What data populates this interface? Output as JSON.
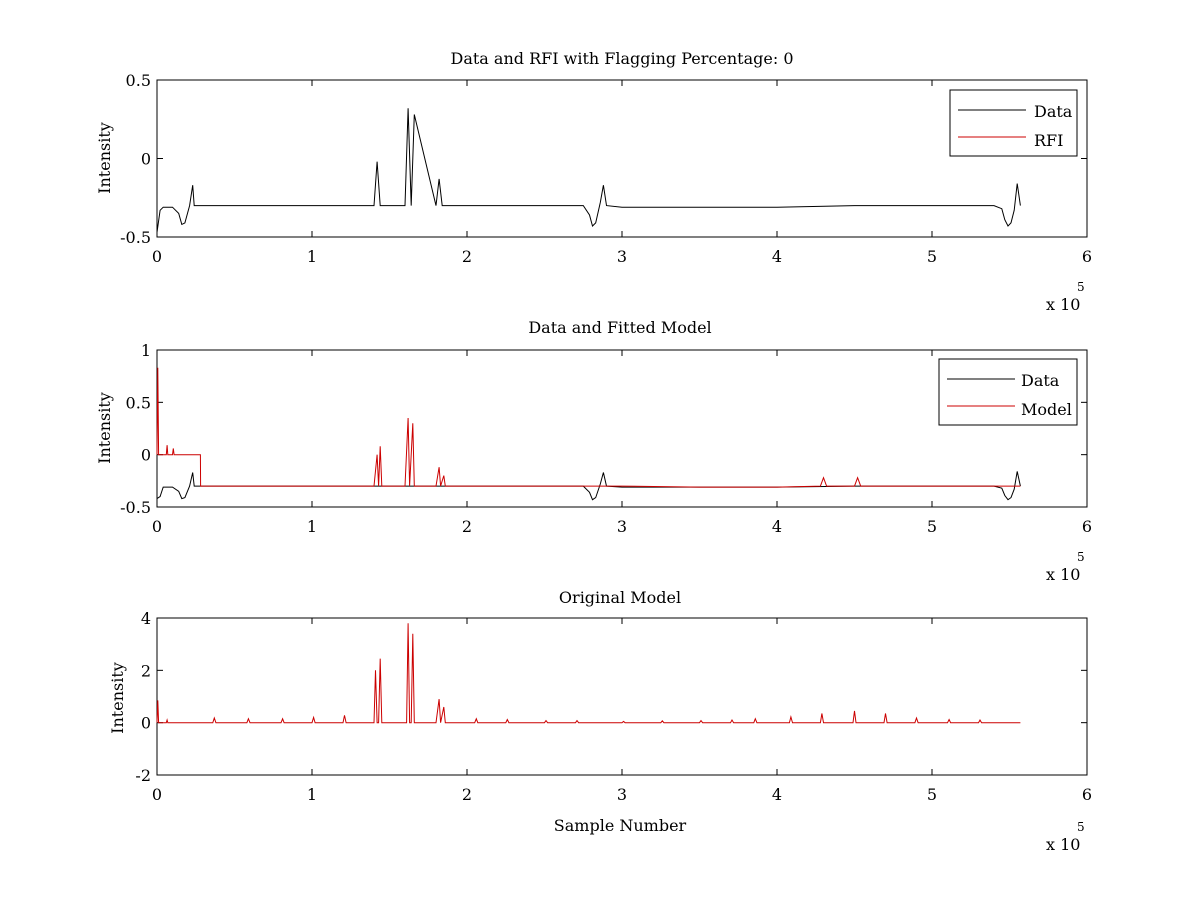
{
  "chart_data": [
    {
      "type": "line",
      "title": "Data and RFI with Flagging Percentage: 0",
      "xlabel": "",
      "ylabel": "Intensity",
      "x_exponent_label": "x 10",
      "x_exponent_power": "5",
      "xlim": [
        0,
        6
      ],
      "ylim": [
        -0.5,
        0.5
      ],
      "xticks": [
        "0",
        "1",
        "2",
        "3",
        "4",
        "5",
        "6"
      ],
      "yticks": [
        "-0.5",
        "0",
        "0.5"
      ],
      "legend": {
        "position": "top-right",
        "entries": [
          "Data",
          "RFI"
        ]
      },
      "series": [
        {
          "name": "Data",
          "color": "#000000",
          "x": [
            0,
            0.02,
            0.04,
            0.06,
            0.1,
            0.14,
            0.16,
            0.18,
            0.21,
            0.23,
            0.24,
            0.3,
            0.5,
            0.8,
            1.0,
            1.2,
            1.4,
            1.42,
            1.44,
            1.46,
            1.6,
            1.62,
            1.64,
            1.66,
            1.8,
            1.82,
            1.84,
            1.86,
            2.0,
            2.4,
            2.75,
            2.79,
            2.81,
            2.83,
            2.86,
            2.88,
            2.9,
            3.0,
            3.5,
            4.0,
            4.5,
            5.0,
            5.4,
            5.45,
            5.47,
            5.49,
            5.51,
            5.53,
            5.55,
            5.57
          ],
          "y": [
            -0.47,
            -0.33,
            -0.31,
            -0.31,
            -0.31,
            -0.35,
            -0.42,
            -0.41,
            -0.3,
            -0.17,
            -0.3,
            -0.3,
            -0.3,
            -0.3,
            -0.3,
            -0.3,
            -0.3,
            -0.02,
            -0.3,
            -0.3,
            -0.3,
            0.32,
            -0.3,
            0.28,
            -0.3,
            -0.13,
            -0.3,
            -0.3,
            -0.3,
            -0.3,
            -0.3,
            -0.36,
            -0.43,
            -0.41,
            -0.28,
            -0.17,
            -0.3,
            -0.31,
            -0.31,
            -0.31,
            -0.3,
            -0.3,
            -0.3,
            -0.32,
            -0.39,
            -0.43,
            -0.41,
            -0.33,
            -0.16,
            -0.3
          ]
        },
        {
          "name": "RFI",
          "color": "#cc0000",
          "x": [],
          "y": []
        }
      ]
    },
    {
      "type": "line",
      "title": "Data and Fitted Model",
      "xlabel": "",
      "ylabel": "Intensity",
      "x_exponent_label": "x 10",
      "x_exponent_power": "5",
      "xlim": [
        0,
        6
      ],
      "ylim": [
        -0.5,
        1
      ],
      "xticks": [
        "0",
        "1",
        "2",
        "3",
        "4",
        "5",
        "6"
      ],
      "yticks": [
        "-0.5",
        "0",
        "0.5",
        "1"
      ],
      "legend": {
        "position": "top-right",
        "entries": [
          "Data",
          "Model"
        ]
      },
      "series": [
        {
          "name": "Data",
          "color": "#000000",
          "x": [
            0,
            0.02,
            0.04,
            0.06,
            0.1,
            0.14,
            0.16,
            0.18,
            0.21,
            0.23,
            0.24,
            0.3,
            0.5,
            1.0,
            1.5,
            2.0,
            2.5,
            2.75,
            2.79,
            2.81,
            2.83,
            2.86,
            2.88,
            2.9,
            3.0,
            3.5,
            4.0,
            4.5,
            5.0,
            5.4,
            5.45,
            5.47,
            5.49,
            5.51,
            5.53,
            5.55,
            5.57
          ],
          "y": [
            -0.42,
            -0.4,
            -0.31,
            -0.31,
            -0.31,
            -0.35,
            -0.42,
            -0.41,
            -0.3,
            -0.17,
            -0.3,
            -0.3,
            -0.3,
            -0.3,
            -0.3,
            -0.3,
            -0.3,
            -0.3,
            -0.36,
            -0.43,
            -0.41,
            -0.28,
            -0.17,
            -0.3,
            -0.31,
            -0.31,
            -0.31,
            -0.3,
            -0.3,
            -0.3,
            -0.32,
            -0.39,
            -0.43,
            -0.41,
            -0.33,
            -0.16,
            -0.3
          ]
        },
        {
          "name": "Model",
          "color": "#cc0000",
          "x": [
            0,
            0.005,
            0.01,
            0.015,
            0.02,
            0.06,
            0.065,
            0.07,
            0.1,
            0.105,
            0.11,
            0.28,
            0.281,
            0.5,
            1.0,
            1.4,
            1.42,
            1.43,
            1.44,
            1.45,
            1.46,
            1.6,
            1.62,
            1.63,
            1.65,
            1.66,
            1.67,
            1.8,
            1.82,
            1.83,
            1.85,
            1.86,
            2.0,
            2.5,
            3.0,
            3.5,
            4.0,
            4.28,
            4.3,
            4.32,
            4.5,
            4.52,
            4.54,
            5.0,
            5.4,
            5.57
          ],
          "y": [
            0.0,
            0.83,
            0.0,
            0.0,
            0.0,
            0.0,
            0.09,
            0.0,
            0.0,
            0.06,
            0.0,
            0.0,
            -0.3,
            -0.3,
            -0.3,
            -0.3,
            0.0,
            -0.3,
            0.08,
            -0.3,
            -0.3,
            -0.3,
            0.35,
            -0.3,
            0.3,
            -0.3,
            -0.3,
            -0.3,
            -0.12,
            -0.3,
            -0.2,
            -0.3,
            -0.3,
            -0.3,
            -0.3,
            -0.31,
            -0.31,
            -0.3,
            -0.22,
            -0.3,
            -0.3,
            -0.22,
            -0.3,
            -0.3,
            -0.3,
            -0.3
          ]
        }
      ]
    },
    {
      "type": "line",
      "title": "Original Model",
      "xlabel": "Sample Number",
      "ylabel": "Intensity",
      "x_exponent_label": "x 10",
      "x_exponent_power": "5",
      "xlim": [
        0,
        6
      ],
      "ylim": [
        -2,
        4
      ],
      "xticks": [
        "0",
        "1",
        "2",
        "3",
        "4",
        "5",
        "6"
      ],
      "yticks": [
        "-2",
        "0",
        "2",
        "4"
      ],
      "legend": null,
      "series": [
        {
          "name": "",
          "color": "#cc0000",
          "x": [
            0,
            0.005,
            0.01,
            0.06,
            0.065,
            0.07,
            0.36,
            0.37,
            0.38,
            0.58,
            0.59,
            0.6,
            0.8,
            0.81,
            0.82,
            1.0,
            1.01,
            1.02,
            1.2,
            1.21,
            1.22,
            1.4,
            1.41,
            1.42,
            1.43,
            1.44,
            1.45,
            1.61,
            1.62,
            1.63,
            1.64,
            1.65,
            1.66,
            1.8,
            1.82,
            1.83,
            1.85,
            1.86,
            2.05,
            2.06,
            2.07,
            2.25,
            2.26,
            2.27,
            2.5,
            2.51,
            2.52,
            2.7,
            2.71,
            2.72,
            3.0,
            3.01,
            3.02,
            3.25,
            3.26,
            3.27,
            3.5,
            3.51,
            3.52,
            3.7,
            3.71,
            3.72,
            3.85,
            3.86,
            3.87,
            4.08,
            4.09,
            4.1,
            4.28,
            4.29,
            4.3,
            4.49,
            4.5,
            4.51,
            4.69,
            4.7,
            4.71,
            4.89,
            4.9,
            4.91,
            5.1,
            5.11,
            5.12,
            5.3,
            5.31,
            5.32,
            5.57
          ],
          "y": [
            0,
            0.85,
            0,
            0,
            0.1,
            0,
            0,
            0.18,
            0,
            0,
            0.15,
            0,
            0,
            0.15,
            0,
            0,
            0.2,
            0,
            0,
            0.28,
            0,
            0,
            2.0,
            0,
            0,
            2.45,
            0,
            0,
            3.8,
            0,
            0,
            3.4,
            0,
            0,
            0.9,
            0,
            0.6,
            0,
            0,
            0.15,
            0,
            0,
            0.12,
            0,
            0,
            0.08,
            0,
            0,
            0.08,
            0,
            0,
            0.05,
            0,
            0,
            0.07,
            0,
            0,
            0.08,
            0,
            0,
            0.1,
            0,
            0,
            0.15,
            0,
            0,
            0.22,
            0,
            0,
            0.35,
            0,
            0,
            0.45,
            0,
            0,
            0.35,
            0,
            0,
            0.18,
            0,
            0,
            0.12,
            0,
            0,
            0.1,
            0,
            0
          ]
        }
      ]
    }
  ]
}
